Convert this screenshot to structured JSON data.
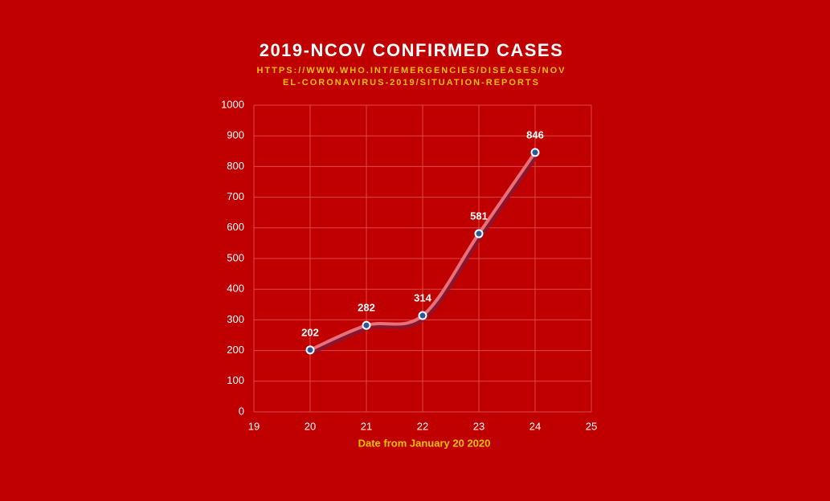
{
  "chart_data": {
    "type": "line",
    "title": "2019-NCOV CONFIRMED CASES",
    "subtitle": [
      "HTTPS://WWW.WHO.INT/EMERGENCIES/DISEASES/NOV",
      "EL-CORONAVIRUS-2019/SITUATION-REPORTS"
    ],
    "x_label": "Date from January 20 2020",
    "x": [
      20,
      21,
      22,
      23,
      24
    ],
    "values": [
      202,
      282,
      314,
      581,
      846
    ],
    "color": "#e8707a",
    "marker_color": "#2f5597",
    "xlim": [
      19,
      25
    ],
    "xticks": [
      19,
      20,
      21,
      22,
      23,
      24,
      25
    ],
    "ylim": [
      0,
      1000
    ],
    "yticks": [
      0,
      100,
      200,
      300,
      400,
      500,
      600,
      700,
      800,
      900,
      1000
    ],
    "grid": true,
    "smooth": true
  }
}
